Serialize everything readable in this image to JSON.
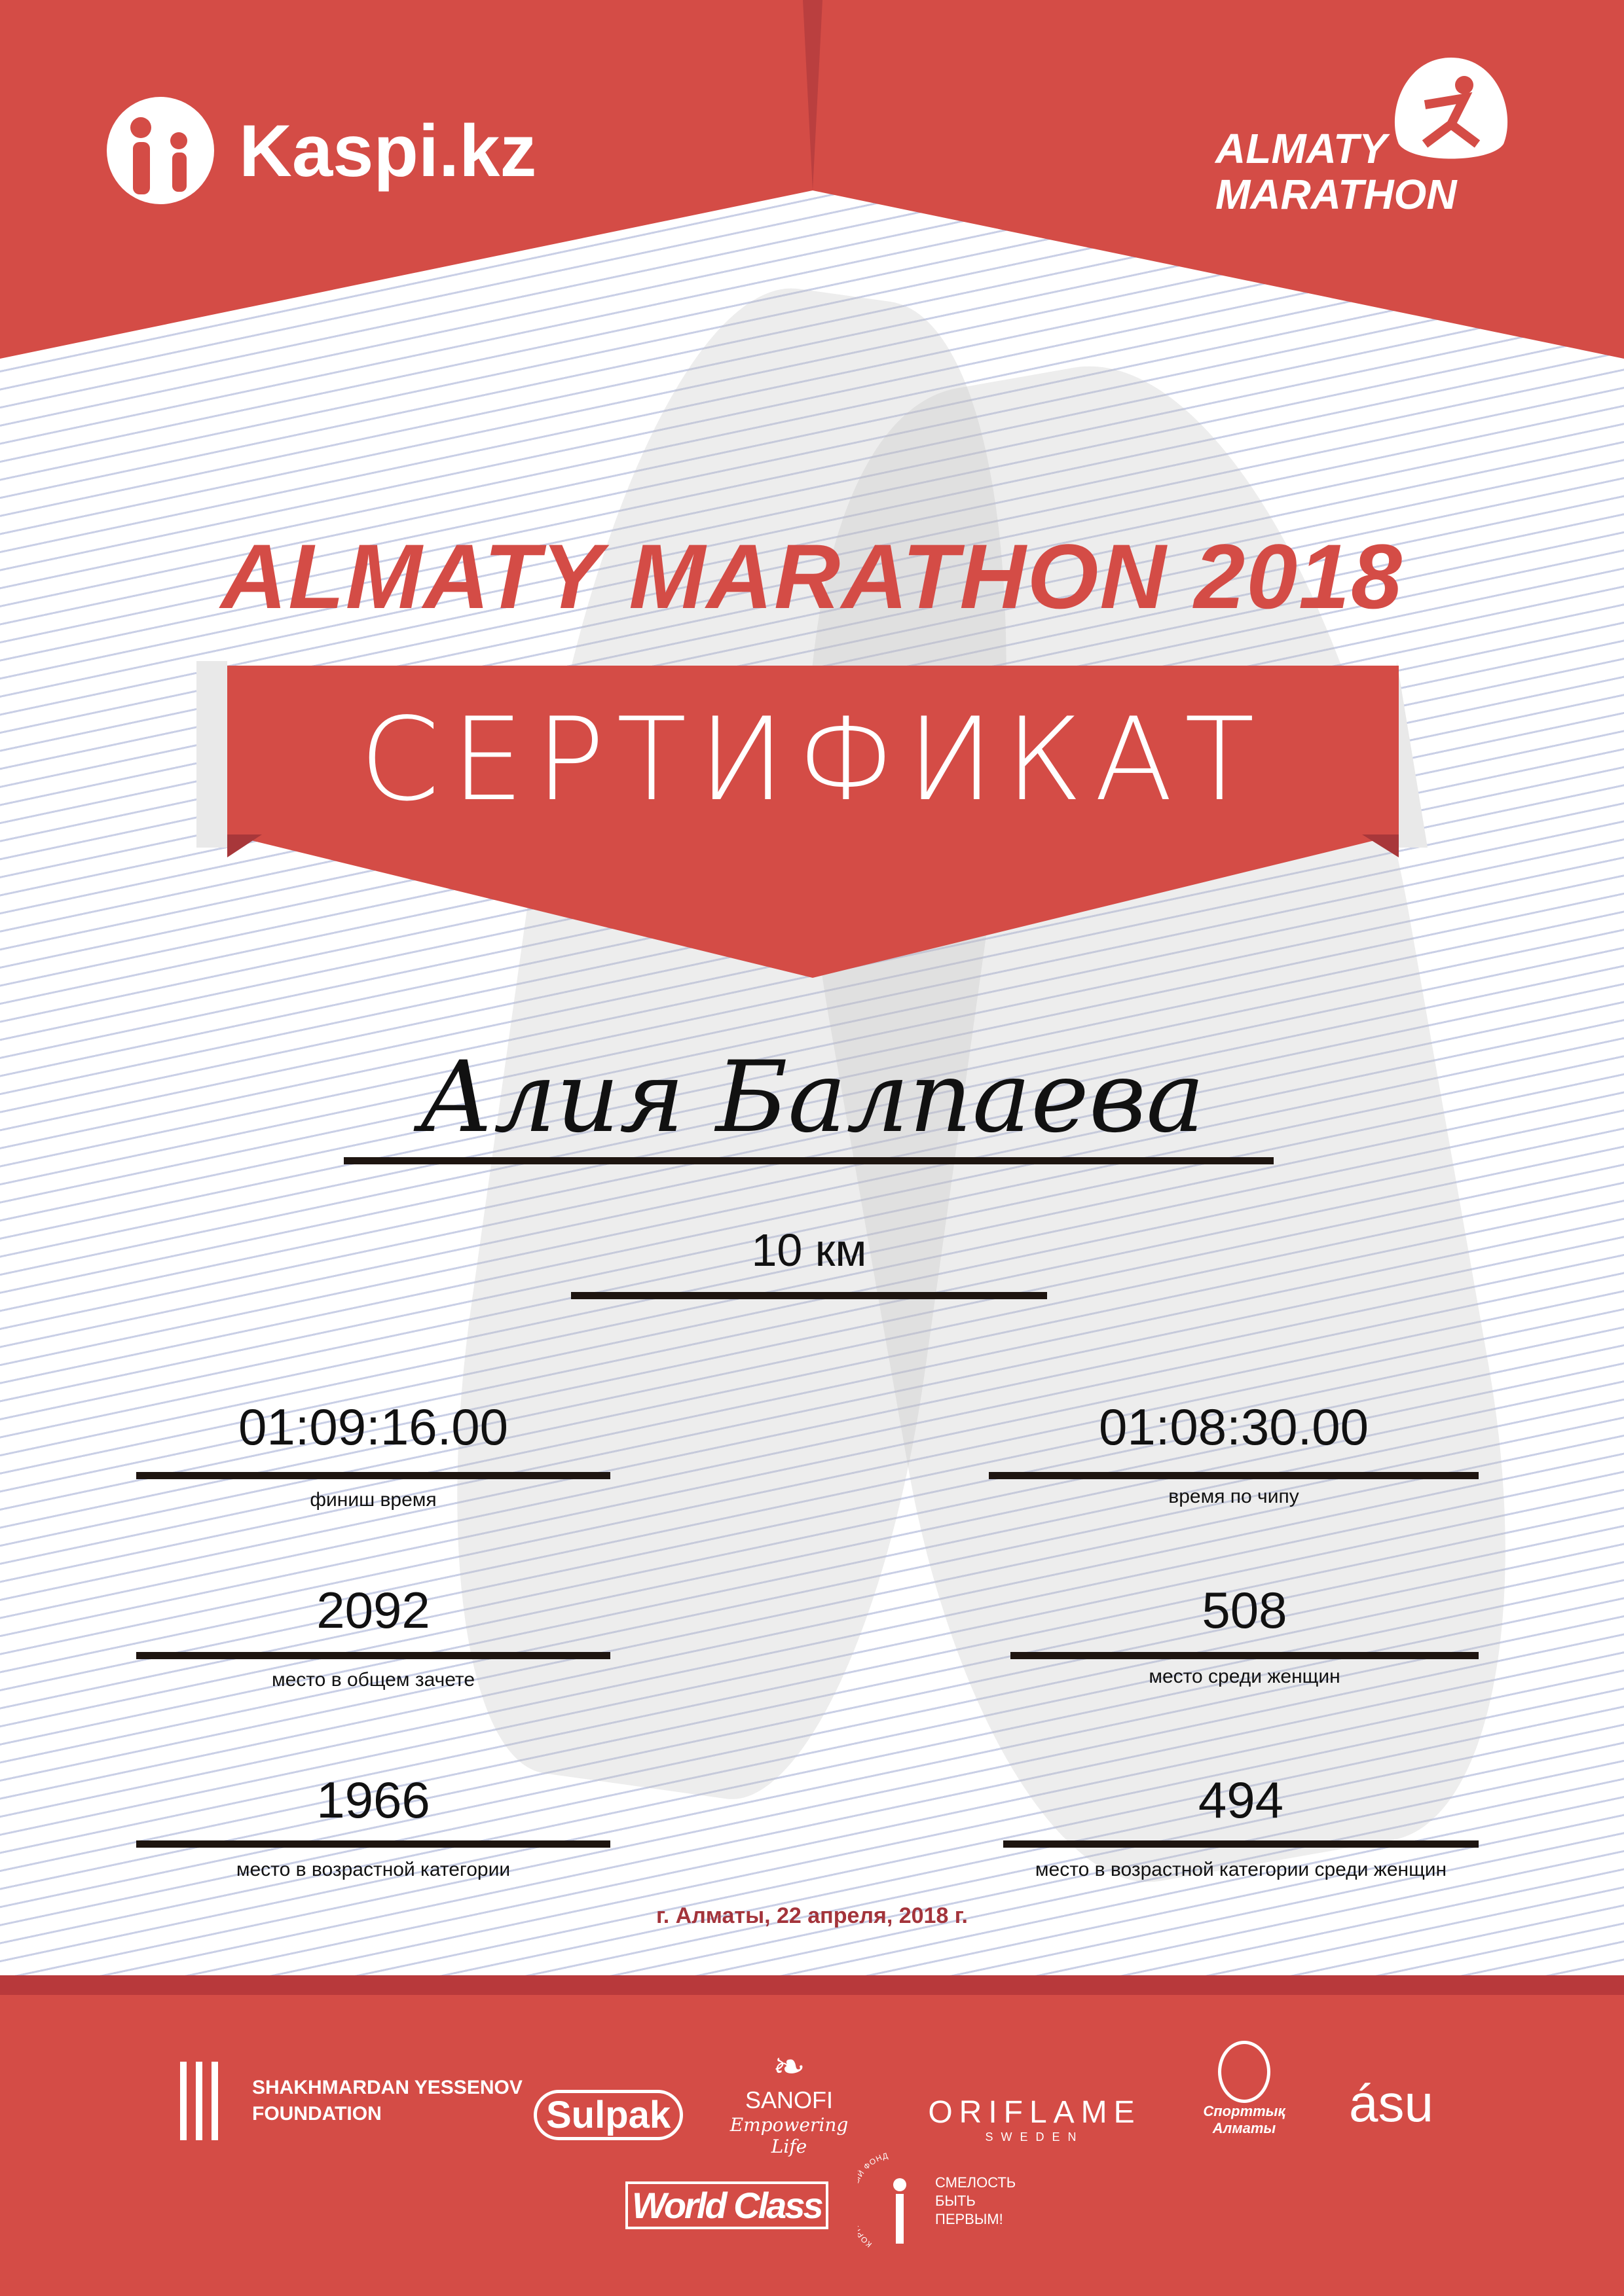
{
  "header": {
    "sponsor_logo": "Kaspi.kz",
    "event_logo_line1": "ALMATY",
    "event_logo_line2": "MARATHON"
  },
  "title": "ALMATY MARATHON 2018",
  "banner": "СЕРТИФИКАТ",
  "participant": {
    "name": "Алия Балпаева",
    "distance": "10 км"
  },
  "results": {
    "finish_time": {
      "value": "01:09:16.00",
      "label": "финиш время"
    },
    "chip_time": {
      "value": "01:08:30.00",
      "label": "время по чипу"
    },
    "overall_place": {
      "value": "2092",
      "label": "место в общем зачете"
    },
    "women_place": {
      "value": "508",
      "label": "место среди женщин"
    },
    "age_place": {
      "value": "1966",
      "label": "место в возрастной категории"
    },
    "age_women_place": {
      "value": "494",
      "label": "место в возрастной категории среди женщин"
    }
  },
  "date": "г. Алматы, 22 апреля, 2018 г.",
  "colors": {
    "brand_red": "#d44c46",
    "dark_red": "#a3343b"
  },
  "partners": {
    "yessenov": [
      "SHAKHMARDAN YESSENOV",
      "FOUNDATION"
    ],
    "sulpak": "Sulpak",
    "sanofi": "SANOFI",
    "sanofi_tagline": "Empowering Life",
    "oriflame": "ORIFLAME",
    "oriflame_sub": "SWEDEN",
    "sport_almaty": [
      "Спорттық",
      "Алматы"
    ],
    "asu": "ásu",
    "worldclass": "World Class",
    "fund": [
      "СМЕЛОСТЬ",
      "БЫТЬ",
      "ПЕРВЫМ!"
    ],
    "fund_arc": "КОРПОРАТИВНЫЙ ФОНД"
  }
}
